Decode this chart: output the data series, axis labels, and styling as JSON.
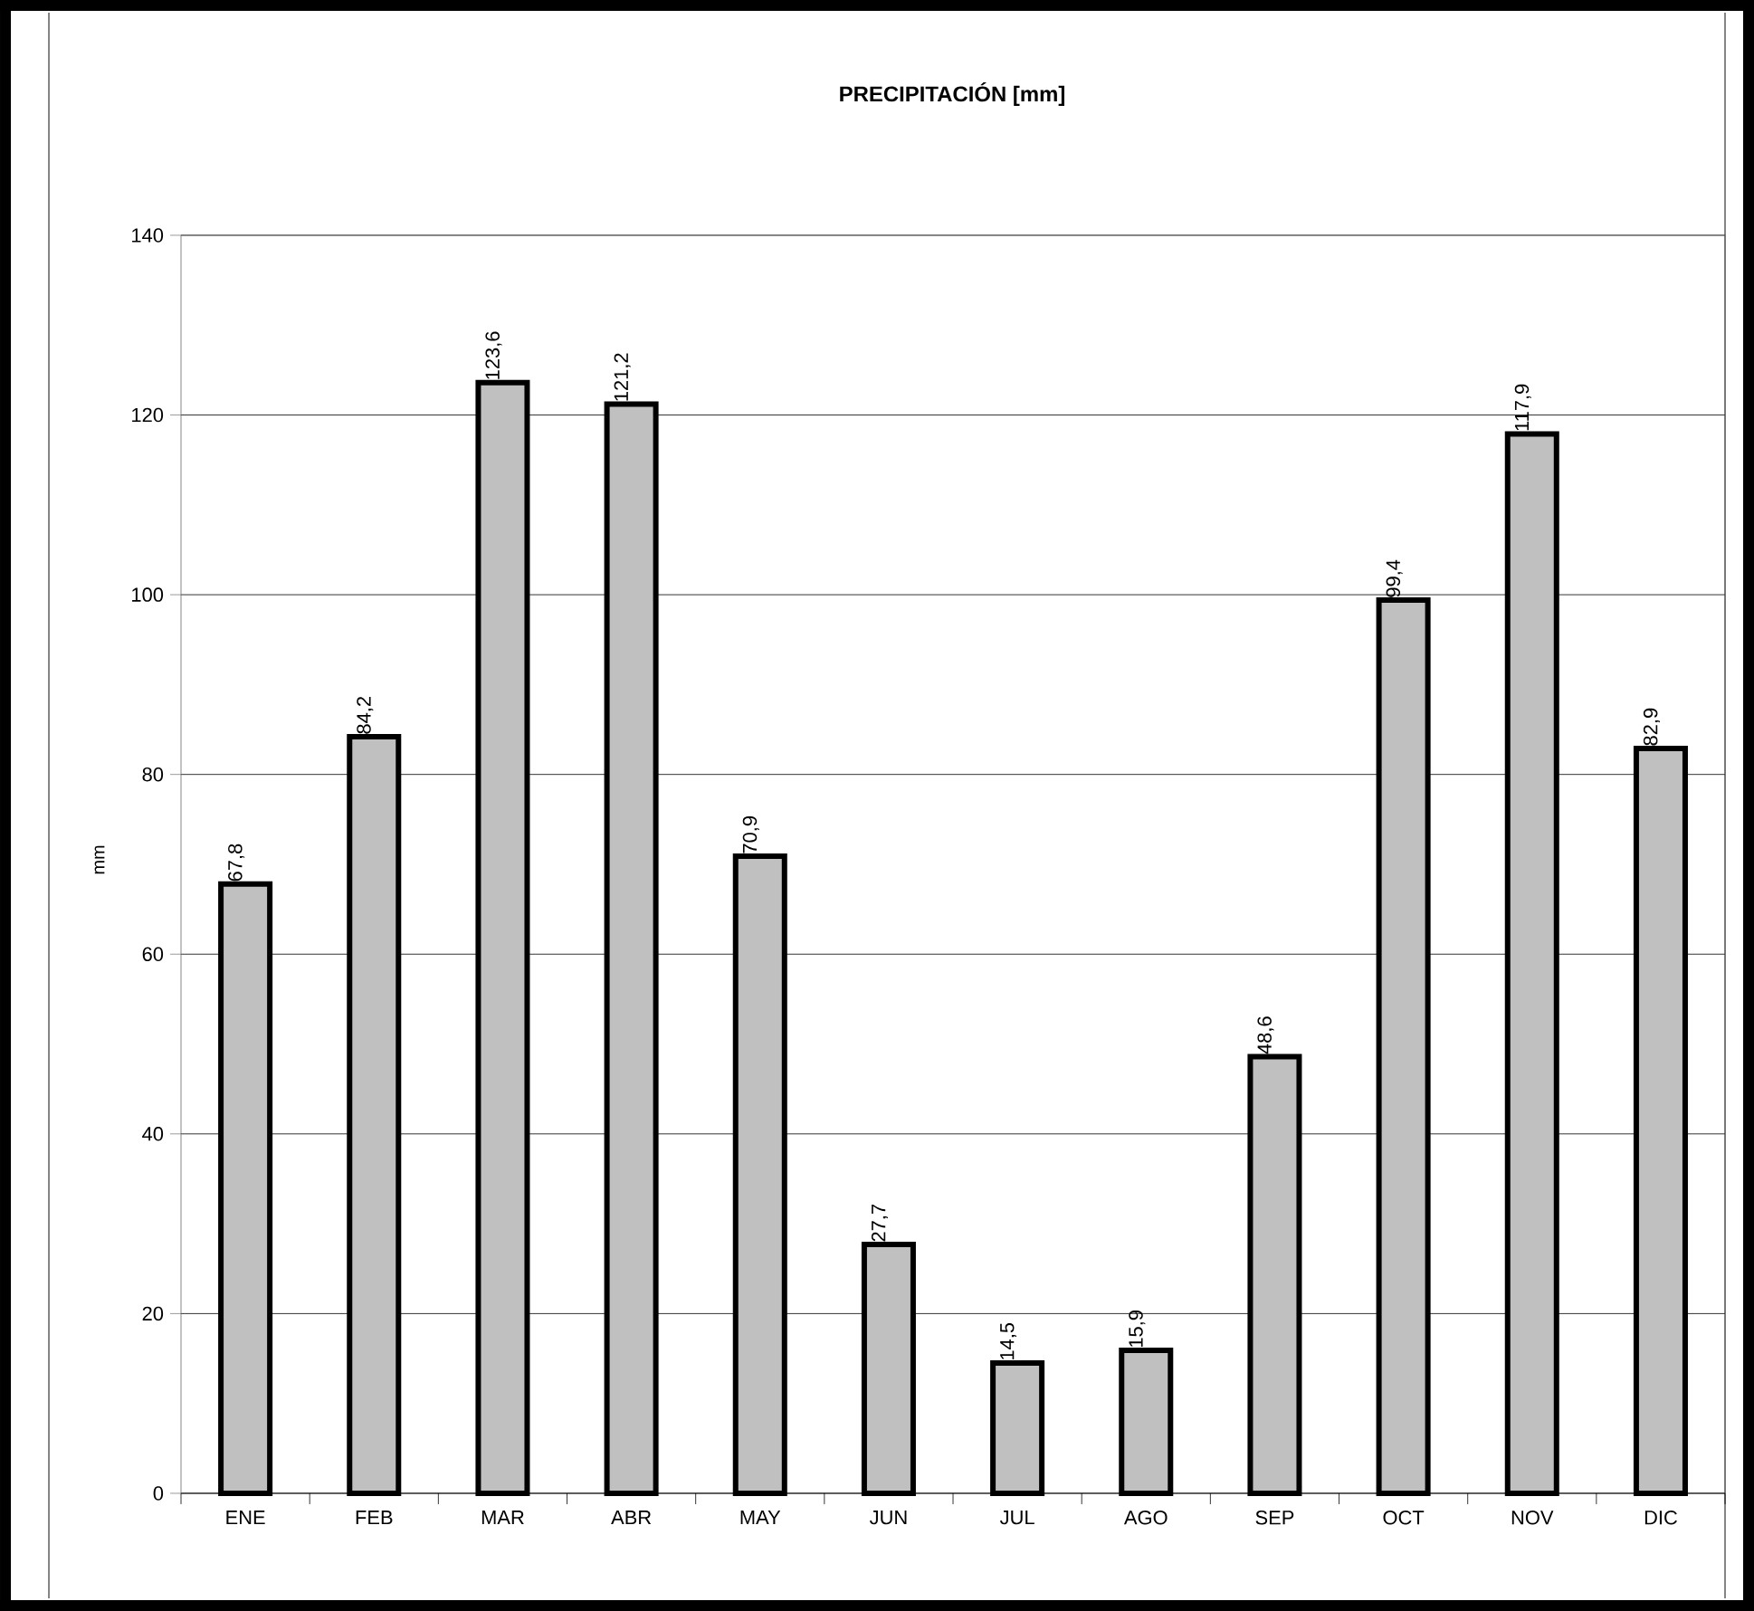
{
  "chart_data": {
    "type": "bar",
    "title": "PRECIPITACIÓN [mm]",
    "ylabel": "mm",
    "categories": [
      "ENE",
      "FEB",
      "MAR",
      "ABR",
      "MAY",
      "JUN",
      "JUL",
      "AGO",
      "SEP",
      "OCT",
      "NOV",
      "DIC"
    ],
    "values": [
      67.8,
      84.2,
      123.6,
      121.2,
      70.9,
      27.7,
      14.5,
      15.9,
      48.6,
      99.4,
      117.9,
      82.9
    ],
    "value_labels": [
      "67,8",
      "84,2",
      "123,6",
      "121,2",
      "70,9",
      "27,7",
      "14,5",
      "15,9",
      "48,6",
      "99,4",
      "117,9",
      "82,9"
    ],
    "color": "#c0c0c0",
    "ylim": [
      0,
      140
    ],
    "yticks": [
      0,
      20,
      40,
      60,
      80,
      100,
      120,
      140
    ],
    "grid": "y"
  }
}
